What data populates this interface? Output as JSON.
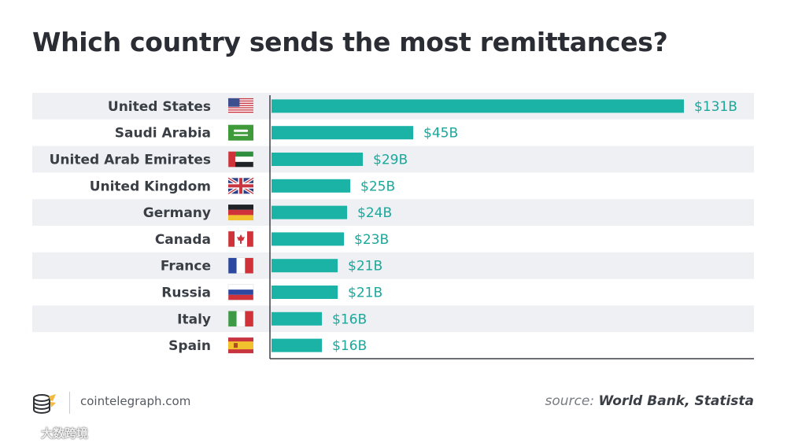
{
  "header": {
    "title": "Which country sends the most remittances?"
  },
  "chart_data": {
    "type": "bar",
    "orientation": "horizontal",
    "title": "Which country sends the most remittances?",
    "xlabel": "",
    "ylabel": "",
    "xlim": [
      0,
      131
    ],
    "unit": "billion USD",
    "grid": false,
    "bar_color": "#1ab3a6",
    "stripe_color": "#eef0f3",
    "categories": [
      "United States",
      "Saudi Arabia",
      "United Arab Emirates",
      "United Kingdom",
      "Germany",
      "Canada",
      "France",
      "Russia",
      "Italy",
      "Spain"
    ],
    "values": [
      131,
      45,
      29,
      25,
      24,
      23,
      21,
      21,
      16,
      16
    ],
    "data_labels": [
      "$131B",
      "$45B",
      "$29B",
      "$25B",
      "$24B",
      "$23B",
      "$21B",
      "$21B",
      "$16B",
      "$16B"
    ],
    "flags": [
      "us-flag-icon",
      "saudi-arabia-flag-icon",
      "uae-flag-icon",
      "uk-flag-icon",
      "germany-flag-icon",
      "canada-flag-icon",
      "france-flag-icon",
      "russia-flag-icon",
      "italy-flag-icon",
      "spain-flag-icon"
    ]
  },
  "footer": {
    "logo_icon": "cointelegraph-logo-icon",
    "site": "cointelegraph.com",
    "source_prefix": "source:",
    "source_names": "World Bank, Statista"
  },
  "watermark": {
    "text": "大数跨境",
    "icon": "watermark-logo-icon"
  },
  "colors": {
    "title": "#2a2d33",
    "bar": "#1ab3a6",
    "label": "#3a3e45",
    "value_label": "#1aa89b",
    "axis": "#3a3e45"
  }
}
